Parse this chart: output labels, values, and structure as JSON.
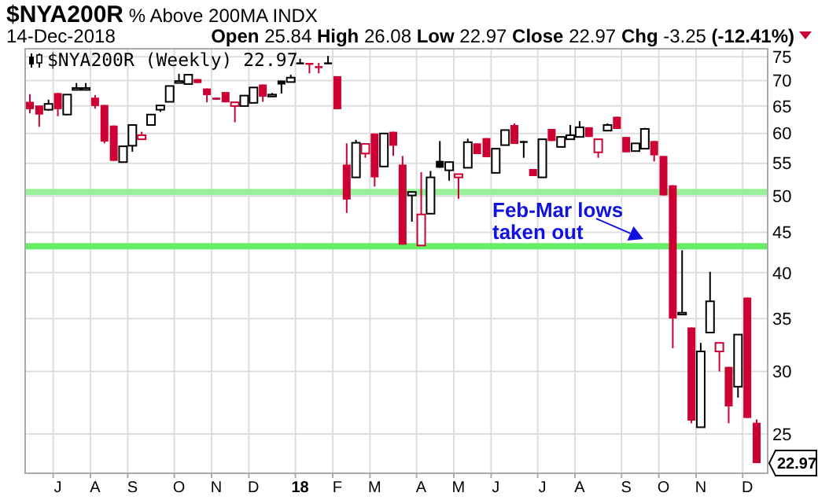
{
  "chart_data": {
    "type": "candlestick",
    "title": "$NYA200R % Above 200MA INDX",
    "subtitle": "14-Dec-2018",
    "annotations": [
      "Open 25.84 High 26.08 Low 22.97 Close 22.97 Chg -3.25 (-12.41%)",
      "Feb-Mar lows\ntaken out",
      "22.97"
    ],
    "log": true,
    "grid": true,
    "legend": "top left",
    "ylim": [
      22.3,
      76.8
    ],
    "yticks": [
      25,
      30,
      35,
      40,
      45,
      50,
      55,
      60,
      65,
      70,
      75
    ],
    "ref_lines": [
      {
        "axis": "y",
        "value": 50.6,
        "color": "#99f099"
      },
      {
        "axis": "y",
        "value": 43.2,
        "color": "#66ee66"
      }
    ],
    "categories": [
      null,
      null,
      null,
      "J",
      null,
      null,
      null,
      "A",
      null,
      null,
      null,
      "S",
      null,
      null,
      null,
      null,
      "O",
      null,
      null,
      null,
      "N",
      null,
      null,
      null,
      "D",
      null,
      null,
      null,
      null,
      "18",
      null,
      null,
      null,
      "F",
      null,
      null,
      null,
      "M",
      null,
      null,
      null,
      null,
      "A",
      null,
      null,
      null,
      "M",
      null,
      null,
      null,
      "J",
      null,
      null,
      null,
      null,
      "J",
      null,
      null,
      null,
      "A",
      null,
      null,
      null,
      null,
      "S",
      null,
      null,
      null,
      "O",
      null,
      null,
      null,
      "N",
      null,
      null,
      null,
      null,
      "D",
      null
    ],
    "series": [
      {
        "name": "$NYA200R (Weekly) 22.97",
        "colors": [
          "#cc0033",
          "#cc0033",
          "#000000",
          "#cc0033",
          "#000000",
          "#000000",
          "#000000",
          "#cc0033",
          "#cc0033",
          "#cc0033",
          "#000000",
          "#000000",
          "#cc0033",
          "#000000",
          "#000000",
          "#000000",
          "#000000",
          "#000000",
          "#cc0033",
          "#cc0033",
          "#cc0033",
          "#cc0033",
          "#cc0033",
          "#000000",
          "#000000",
          "#cc0033",
          "#000000",
          "#000000",
          "#000000",
          "#000000",
          "#cc0033",
          "#cc0033",
          "#000000",
          "#cc0033",
          "#cc0033",
          "#000000",
          "#cc0033",
          "#cc0033",
          "#000000",
          "#cc0033",
          "#cc0033",
          "#000000",
          "#cc0033",
          "#000000",
          "#000000",
          "#000000",
          "#cc0033",
          "#000000",
          "#cc0033",
          "#cc0033",
          "#000000",
          "#000000",
          "#cc0033",
          "#000000",
          "#cc0033",
          "#000000",
          "#cc0033",
          "#000000",
          "#000000",
          "#000000",
          "#cc0033",
          "#cc0033",
          "#000000",
          "#cc0033",
          "#cc0033",
          "#000000",
          "#000000",
          "#cc0033",
          "#cc0033",
          "#cc0033",
          "#000000",
          "#cc0033",
          "#000000",
          "#000000",
          "#cc0033",
          "#cc0033",
          "#000000",
          "#cc0033",
          "#cc0033"
        ],
        "ohlc": [
          [
            65.8,
            67.3,
            63.6,
            64.4
          ],
          [
            65.1,
            65.1,
            61.2,
            63.4
          ],
          [
            64.3,
            66.2,
            64.1,
            65.4
          ],
          [
            67.5,
            67.5,
            63.1,
            64.4
          ],
          [
            63.4,
            67.2,
            63.4,
            67.2
          ],
          [
            68.4,
            69.5,
            68.2,
            68.5
          ],
          [
            68.4,
            69.5,
            68.2,
            68.5
          ],
          [
            66.6,
            67.1,
            64.5,
            65.0
          ],
          [
            65.2,
            65.2,
            58.3,
            58.6
          ],
          [
            61.4,
            61.4,
            55.4,
            55.4
          ],
          [
            55.2,
            57.8,
            55.2,
            57.8
          ],
          [
            57.9,
            61.5,
            56.9,
            61.5
          ],
          [
            59.0,
            60.3,
            59.0,
            59.7
          ],
          [
            61.5,
            63.4,
            61.5,
            63.4
          ],
          [
            64.3,
            65.1,
            63.9,
            65.1
          ],
          [
            65.8,
            68.9,
            65.8,
            68.9
          ],
          [
            69.8,
            71.4,
            69.5,
            69.9
          ],
          [
            69.3,
            71.2,
            69.3,
            71.2
          ],
          [
            70.3,
            70.3,
            69.5,
            69.5
          ],
          [
            68.4,
            68.4,
            65.7,
            67.1
          ],
          [
            66.6,
            66.6,
            66.2,
            66.2
          ],
          [
            67.7,
            67.7,
            65.7,
            65.7
          ],
          [
            65.0,
            65.7,
            62.0,
            65.7
          ],
          [
            65.0,
            67.0,
            65.0,
            67.0
          ],
          [
            65.6,
            68.6,
            65.6,
            68.6
          ],
          [
            69.2,
            69.2,
            65.8,
            66.8
          ],
          [
            67.0,
            67.5,
            66.7,
            67.2
          ],
          [
            70.0,
            70.0,
            67.4,
            69.2
          ],
          [
            69.7,
            71.2,
            69.7,
            70.6
          ],
          [
            73.8,
            74.6,
            73.7,
            73.7
          ],
          [
            73.7,
            73.7,
            71.5,
            73.5
          ],
          [
            73.0,
            73.7,
            71.5,
            72.8
          ],
          [
            73.8,
            75.2,
            73.7,
            73.7
          ],
          [
            70.9,
            70.9,
            64.4,
            64.4
          ],
          [
            54.8,
            58.3,
            47.6,
            49.5
          ],
          [
            52.8,
            58.9,
            52.8,
            58.4
          ],
          [
            56.6,
            58.2,
            55.9,
            58.2
          ],
          [
            60.0,
            60.0,
            51.4,
            52.8
          ],
          [
            54.5,
            60.0,
            54.5,
            60.0
          ],
          [
            60.3,
            60.3,
            56.2,
            57.9
          ],
          [
            54.8,
            56.2,
            43.4,
            43.4
          ],
          [
            50.1,
            50.6,
            46.4,
            50.6
          ],
          [
            43.3,
            53.6,
            43.3,
            47.4
          ],
          [
            47.5,
            53.8,
            47.5,
            52.8
          ],
          [
            55.4,
            58.7,
            54.3,
            54.3
          ],
          [
            53.9,
            55.2,
            52.3,
            55.2
          ],
          [
            52.8,
            53.3,
            49.6,
            53.3
          ],
          [
            54.3,
            59.1,
            54.3,
            58.5
          ],
          [
            58.3,
            58.3,
            56.5,
            56.5
          ],
          [
            59.2,
            59.2,
            56.0,
            56.0
          ],
          [
            53.5,
            57.4,
            53.5,
            57.4
          ],
          [
            58.0,
            60.6,
            58.0,
            60.6
          ],
          [
            61.5,
            61.8,
            58.2,
            58.2
          ],
          [
            58.7,
            58.7,
            55.9,
            58.6
          ],
          [
            54.1,
            54.1,
            53.0,
            53.0
          ],
          [
            52.8,
            59.0,
            52.8,
            59.0
          ],
          [
            60.8,
            60.8,
            58.7,
            58.7
          ],
          [
            57.7,
            59.4,
            57.7,
            59.4
          ],
          [
            59.0,
            61.5,
            59.0,
            59.7
          ],
          [
            59.4,
            62.2,
            59.4,
            61.1
          ],
          [
            61.1,
            61.1,
            59.4,
            59.4
          ],
          [
            56.8,
            59.0,
            55.9,
            59.0
          ],
          [
            60.5,
            61.8,
            60.5,
            61.5
          ],
          [
            63.0,
            63.0,
            60.8,
            60.8
          ],
          [
            59.4,
            59.4,
            56.8,
            56.8
          ],
          [
            57.0,
            58.3,
            57.0,
            58.3
          ],
          [
            57.4,
            61.0,
            57.4,
            60.8
          ],
          [
            58.7,
            58.7,
            55.3,
            56.3
          ],
          [
            56.2,
            56.2,
            50.1,
            50.1
          ],
          [
            51.6,
            51.6,
            32.1,
            35.0
          ],
          [
            35.5,
            42.7,
            35.5,
            35.6
          ],
          [
            34.1,
            34.1,
            25.8,
            26.0
          ],
          [
            25.5,
            32.6,
            25.5,
            31.8
          ],
          [
            33.6,
            40.1,
            33.6,
            36.8
          ],
          [
            31.8,
            32.6,
            30.0,
            32.6
          ],
          [
            30.4,
            30.4,
            25.8,
            27.1
          ],
          [
            28.7,
            33.4,
            27.8,
            33.4
          ],
          [
            37.2,
            37.2,
            26.2,
            26.2
          ],
          [
            25.84,
            26.08,
            22.97,
            22.97
          ]
        ]
      }
    ]
  }
}
